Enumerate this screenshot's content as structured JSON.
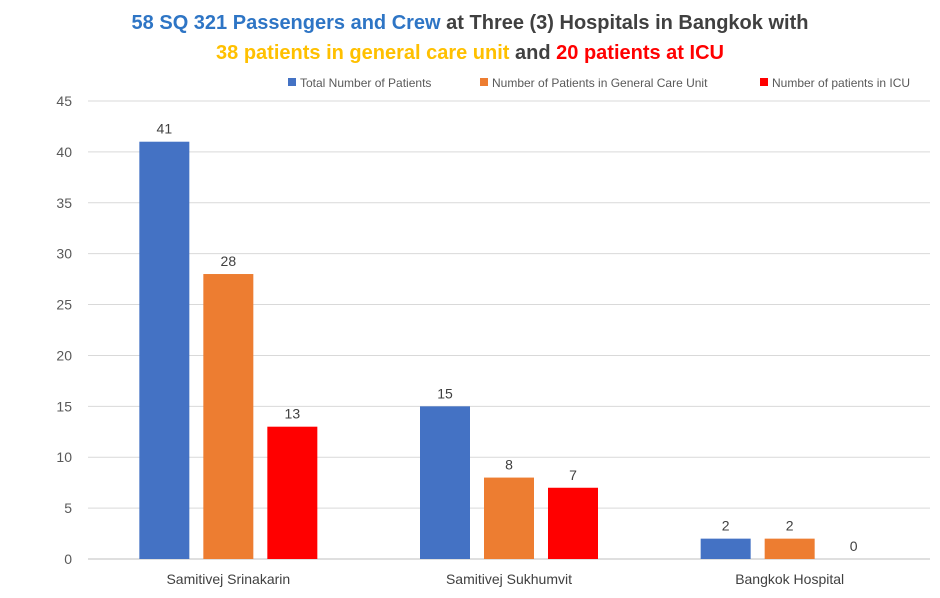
{
  "title": {
    "line1": [
      {
        "text": "58 SQ 321 Passengers and Crew",
        "color": "#2E75C5"
      },
      {
        "text": " at Three (3) Hospitals in Bangkok with",
        "color": "#404040"
      }
    ],
    "line2": [
      {
        "text": "38 patients in general care unit",
        "color": "#FFC000"
      },
      {
        "text": " and ",
        "color": "#404040"
      },
      {
        "text": "20 patients at ICU",
        "color": "#FF0000"
      }
    ]
  },
  "chart_data": {
    "type": "bar",
    "categories": [
      "Samitivej Srinakarin",
      "Samitivej Sukhumvit",
      "Bangkok Hospital"
    ],
    "series": [
      {
        "name": "Total Number of Patients",
        "color": "#4472C4",
        "values": [
          41,
          15,
          2
        ]
      },
      {
        "name": "Number of Patients in General Care Unit",
        "color": "#ED7D31",
        "values": [
          28,
          8,
          2
        ]
      },
      {
        "name": "Number of patients in ICU",
        "color": "#FF0000",
        "values": [
          13,
          7,
          0
        ]
      }
    ],
    "ylim": [
      0,
      45
    ],
    "yticks": [
      0,
      5,
      10,
      15,
      20,
      25,
      30,
      35,
      40,
      45
    ],
    "grid": true,
    "legend_position": "top-right",
    "data_labels": true
  }
}
